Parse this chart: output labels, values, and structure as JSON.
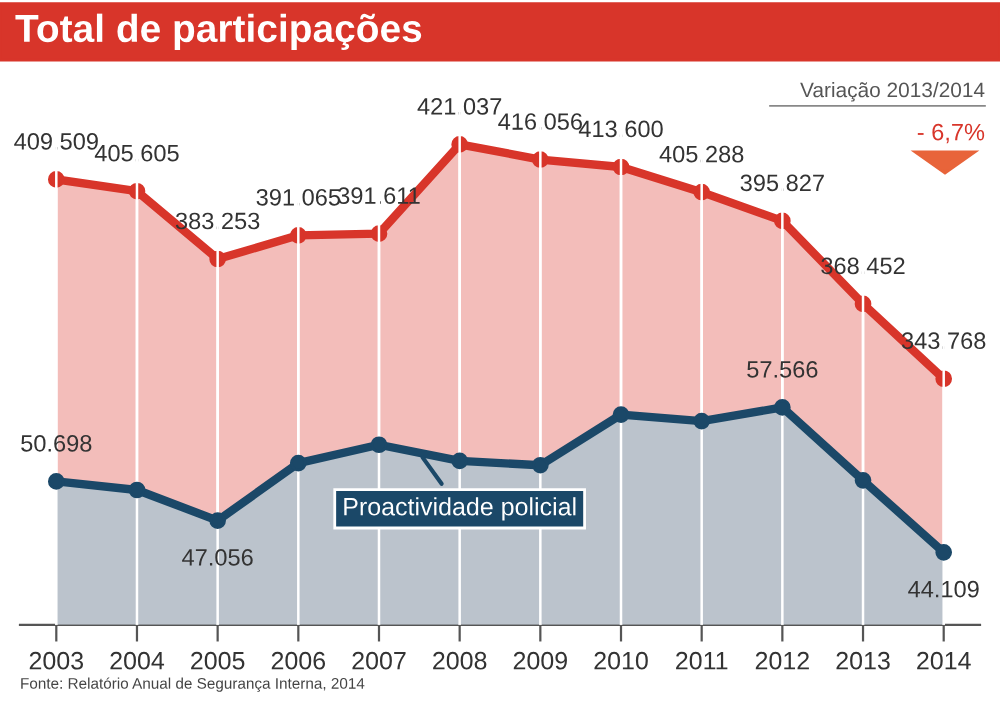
{
  "chart_data": {
    "type": "area",
    "title": "Total de participações",
    "categories": [
      "2003",
      "2004",
      "2005",
      "2006",
      "2007",
      "2008",
      "2009",
      "2010",
      "2011",
      "2012",
      "2013",
      "2014"
    ],
    "series": [
      {
        "color": "#d8352a",
        "values": [
          409509,
          405605,
          383253,
          391065,
          391611,
          421037,
          416056,
          413600,
          405288,
          395827,
          368452,
          343768
        ],
        "value_labels": [
          "409.509",
          "405.605",
          "383.253",
          "391.065",
          "391.611",
          "421.037",
          "416.056",
          "413.600",
          "405.288",
          "395.827",
          "368.452",
          "343.768"
        ]
      },
      {
        "name": "Proactividade policial",
        "axis": "y2",
        "color": "#1b4868",
        "values": [
          50698,
          49900,
          47056,
          52400,
          54100,
          52600,
          52200,
          56900,
          56300,
          57566,
          50800,
          44109
        ],
        "value_labels": [
          "50.698",
          null,
          "47.056",
          null,
          null,
          null,
          null,
          null,
          null,
          "57.566",
          null,
          "44.109"
        ]
      }
    ],
    "tick_labels": "x",
    "grid": "x",
    "marker": "circle",
    "annotations": [
      "Variação 2013/2014",
      "- 6,7%",
      "Fonte: Relatório Anual de Segurança Interna, 2014"
    ]
  }
}
